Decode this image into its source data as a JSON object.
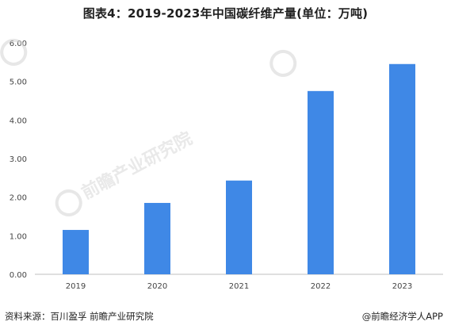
{
  "title": "图表4：2019-2023年中国碳纤维产量(单位：万吨)",
  "chart_data": {
    "type": "bar",
    "categories": [
      "2019",
      "2020",
      "2021",
      "2022",
      "2023"
    ],
    "values": [
      1.15,
      1.85,
      2.43,
      4.75,
      5.45
    ],
    "ylim": [
      0,
      6
    ],
    "yticks": [
      "0.00",
      "1.00",
      "2.00",
      "3.00",
      "4.00",
      "5.00",
      "6.00"
    ],
    "grid": false,
    "bar_color": "#3f88e6"
  },
  "footer": {
    "source": "资料来源：百川盈孚 前瞻产业研究院",
    "brand": "@前瞻经济学人APP"
  },
  "watermark": {
    "text": "前瞻产业研究院"
  }
}
